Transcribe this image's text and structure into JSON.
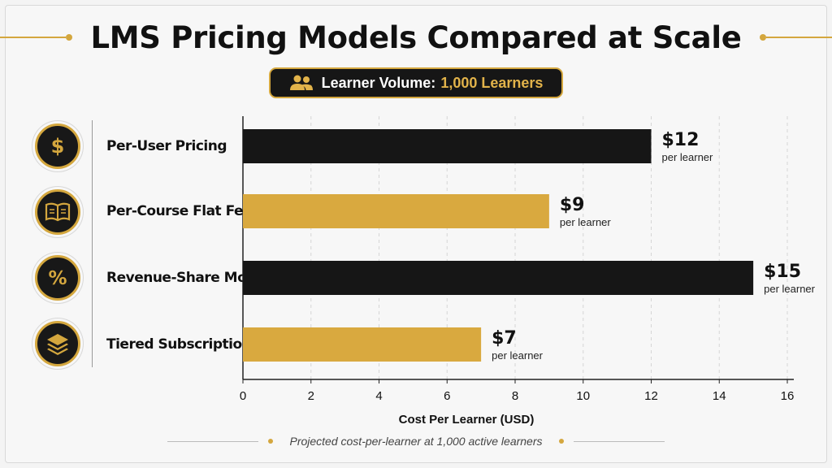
{
  "header": {
    "title": "LMS Pricing Models Compared at Scale"
  },
  "badge": {
    "label": "Learner Volume:",
    "value": "1,000 Learners",
    "icon": "users-icon"
  },
  "footer": {
    "caption": "Projected cost-per-learner at 1,000 active learners"
  },
  "colors": {
    "dark": "#161616",
    "gold": "#d4a73e",
    "bar_gold": "#d9a93f"
  },
  "chart_data": {
    "type": "bar",
    "orientation": "horizontal",
    "categories": [
      "Per-User Pricing",
      "Per-Course Flat Fee",
      "Revenue-Share Model",
      "Tiered Subscription"
    ],
    "category_icons": [
      "dollar-icon",
      "book-icon",
      "percent-icon",
      "layers-icon"
    ],
    "values": [
      12,
      9,
      15,
      7
    ],
    "value_labels": [
      "$12",
      "$9",
      "$15",
      "$7"
    ],
    "value_sublabel": "per learner",
    "bar_colors": [
      "#161616",
      "#d9a93f",
      "#161616",
      "#d9a93f"
    ],
    "xlabel": "Cost Per Learner (USD)",
    "xlim": [
      0,
      16
    ],
    "xticks": [
      0,
      2,
      4,
      6,
      8,
      10,
      12,
      14,
      16
    ],
    "grid": "vertical-dashed"
  }
}
